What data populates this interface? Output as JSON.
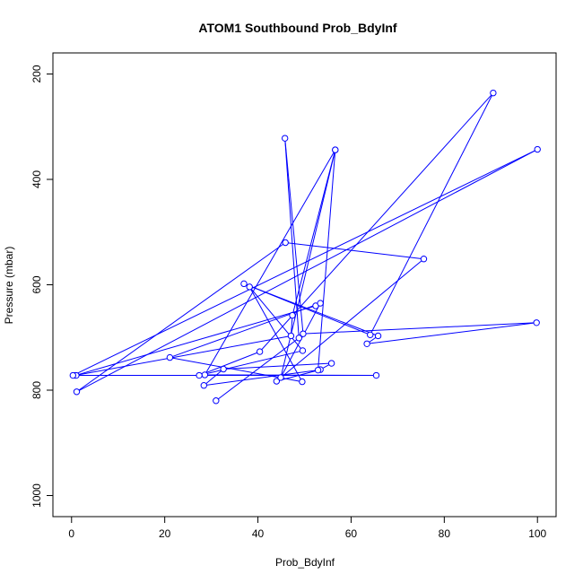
{
  "chart_data": {
    "type": "line",
    "title": "ATOM1 Southbound Prob_BdyInf",
    "xlabel": "Prob_BdyInf",
    "ylabel": "Pressure (mbar)",
    "xlim": [
      0,
      100
    ],
    "ylim": [
      1040,
      160
    ],
    "y_reversed": true,
    "x_ticks": [
      0,
      20,
      40,
      60,
      80,
      100
    ],
    "y_ticks": [
      200,
      400,
      600,
      800,
      1000
    ],
    "grid": false,
    "legend": "none",
    "color": "#0000ff",
    "series": [
      {
        "marker": "open-circle",
        "points": [
          {
            "x": 52.4,
            "y": 640
          },
          {
            "x": 0.8,
            "y": 772
          },
          {
            "x": 47.1,
            "y": 697
          },
          {
            "x": 47.4,
            "y": 658
          },
          {
            "x": 56.6,
            "y": 344
          },
          {
            "x": 28.6,
            "y": 771
          },
          {
            "x": 65.4,
            "y": 772
          },
          {
            "x": 1.0,
            "y": 772
          },
          {
            "x": 0.3,
            "y": 772
          },
          {
            "x": 100.0,
            "y": 343
          },
          {
            "x": 1.1,
            "y": 803
          },
          {
            "x": 45.9,
            "y": 520
          },
          {
            "x": 75.6,
            "y": 551
          },
          {
            "x": 44.0,
            "y": 783
          },
          {
            "x": 53.4,
            "y": 761
          },
          {
            "x": 55.8,
            "y": 749
          },
          {
            "x": 32.6,
            "y": 760
          },
          {
            "x": 28.4,
            "y": 791
          },
          {
            "x": 52.9,
            "y": 762
          },
          {
            "x": 56.6,
            "y": 344
          },
          {
            "x": 44.9,
            "y": 776
          },
          {
            "x": 53.4,
            "y": 635
          },
          {
            "x": 21.1,
            "y": 738
          },
          {
            "x": 49.5,
            "y": 784
          },
          {
            "x": 38.2,
            "y": 604
          },
          {
            "x": 49.6,
            "y": 725
          },
          {
            "x": 27.4,
            "y": 772
          },
          {
            "x": 40.4,
            "y": 727
          },
          {
            "x": 90.5,
            "y": 236
          },
          {
            "x": 64.1,
            "y": 695
          },
          {
            "x": 37.0,
            "y": 598
          },
          {
            "x": 65.8,
            "y": 697
          },
          {
            "x": 63.4,
            "y": 712
          },
          {
            "x": 99.8,
            "y": 672
          },
          {
            "x": 49.7,
            "y": 693
          },
          {
            "x": 45.8,
            "y": 322
          },
          {
            "x": 48.8,
            "y": 701
          },
          {
            "x": 31.0,
            "y": 820
          }
        ]
      }
    ]
  }
}
